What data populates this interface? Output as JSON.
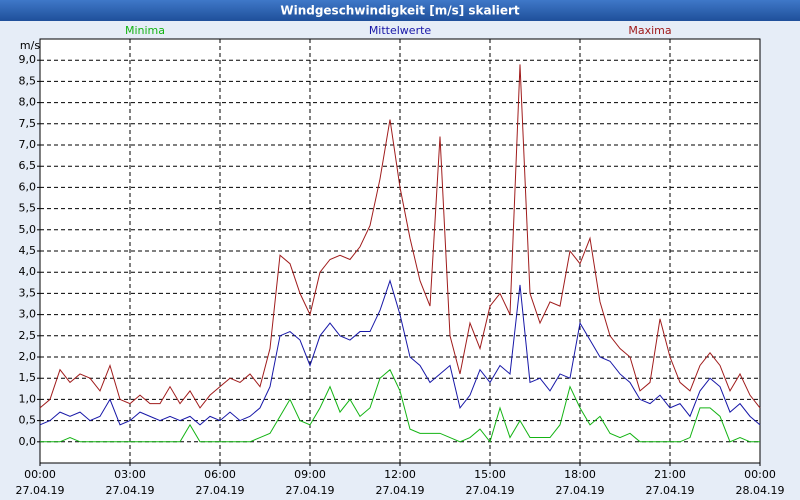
{
  "chart_data": {
    "type": "line",
    "title": "Windgeschwindigkeit [m/s] skaliert",
    "y_label": "m/s",
    "x": [
      0,
      20,
      40,
      60,
      80,
      100,
      120,
      140,
      160,
      180,
      200,
      220,
      240,
      260,
      280,
      300,
      320,
      340,
      360,
      380,
      400,
      420,
      440,
      460,
      480,
      500,
      520,
      540,
      560,
      580,
      600,
      620,
      640,
      660,
      680,
      700,
      720,
      740,
      760,
      780,
      800,
      820,
      840,
      860,
      880,
      900,
      920,
      940,
      960,
      980,
      1000,
      1020,
      1040,
      1060,
      1080,
      1100,
      1120,
      1140,
      1160,
      1180,
      1200,
      1220,
      1240,
      1260,
      1280,
      1300,
      1320,
      1340,
      1360,
      1380,
      1400,
      1420,
      1440
    ],
    "series": [
      {
        "name": "Minima",
        "color": "#14b414",
        "values": [
          0.0,
          0.0,
          0.0,
          0.1,
          0.0,
          0.0,
          0.0,
          0.0,
          0.0,
          0.0,
          0.0,
          0.0,
          0.0,
          0.0,
          0.0,
          0.4,
          0.0,
          0.0,
          0.0,
          0.0,
          0.0,
          0.0,
          0.1,
          0.2,
          0.6,
          1.0,
          0.5,
          0.4,
          0.8,
          1.3,
          0.7,
          1.0,
          0.6,
          0.8,
          1.5,
          1.7,
          1.2,
          0.3,
          0.2,
          0.2,
          0.2,
          0.1,
          0.0,
          0.1,
          0.3,
          0.0,
          0.8,
          0.1,
          0.5,
          0.1,
          0.1,
          0.1,
          0.4,
          1.3,
          0.8,
          0.4,
          0.6,
          0.2,
          0.1,
          0.2,
          0.0,
          0.0,
          0.0,
          0.0,
          0.0,
          0.1,
          0.8,
          0.8,
          0.6,
          0.0,
          0.1,
          0.0,
          0.0
        ]
      },
      {
        "name": "Mittelwerte",
        "color": "#1818a8",
        "values": [
          0.4,
          0.5,
          0.7,
          0.6,
          0.7,
          0.5,
          0.6,
          1.0,
          0.4,
          0.5,
          0.7,
          0.6,
          0.5,
          0.6,
          0.5,
          0.6,
          0.4,
          0.6,
          0.5,
          0.7,
          0.5,
          0.6,
          0.8,
          1.3,
          2.5,
          2.6,
          2.4,
          1.8,
          2.5,
          2.8,
          2.5,
          2.4,
          2.6,
          2.6,
          3.1,
          3.8,
          3.0,
          2.0,
          1.8,
          1.4,
          1.6,
          1.8,
          0.8,
          1.1,
          1.7,
          1.4,
          1.8,
          1.6,
          3.7,
          1.4,
          1.5,
          1.2,
          1.6,
          1.5,
          2.8,
          2.4,
          2.0,
          1.9,
          1.6,
          1.4,
          1.0,
          0.9,
          1.1,
          0.8,
          0.9,
          0.6,
          1.2,
          1.5,
          1.3,
          0.7,
          0.9,
          0.6,
          0.4
        ]
      },
      {
        "name": "Maxima",
        "color": "#a01c1c",
        "values": [
          0.8,
          1.0,
          1.7,
          1.4,
          1.6,
          1.5,
          1.2,
          1.8,
          1.0,
          0.9,
          1.1,
          0.9,
          0.9,
          1.3,
          0.9,
          1.2,
          0.8,
          1.1,
          1.3,
          1.5,
          1.4,
          1.6,
          1.3,
          2.2,
          4.4,
          4.2,
          3.5,
          3.0,
          4.0,
          4.3,
          4.4,
          4.3,
          4.6,
          5.1,
          6.2,
          7.6,
          6.0,
          4.8,
          3.8,
          3.2,
          7.2,
          2.5,
          1.6,
          2.8,
          2.2,
          3.2,
          3.5,
          3.0,
          8.9,
          3.5,
          2.8,
          3.3,
          3.2,
          4.5,
          4.2,
          4.8,
          3.3,
          2.5,
          2.2,
          2.0,
          1.2,
          1.4,
          2.9,
          2.0,
          1.4,
          1.2,
          1.8,
          2.1,
          1.8,
          1.2,
          1.6,
          1.1,
          0.8
        ]
      }
    ],
    "xlim": [
      0,
      1440
    ],
    "xticks": [
      {
        "value": 0,
        "label": "00:00",
        "date": "27.04.19"
      },
      {
        "value": 180,
        "label": "03:00",
        "date": "27.04.19"
      },
      {
        "value": 360,
        "label": "06:00",
        "date": "27.04.19"
      },
      {
        "value": 540,
        "label": "09:00",
        "date": "27.04.19"
      },
      {
        "value": 720,
        "label": "12:00",
        "date": "27.04.19"
      },
      {
        "value": 900,
        "label": "15:00",
        "date": "27.04.19"
      },
      {
        "value": 1080,
        "label": "18:00",
        "date": "27.04.19"
      },
      {
        "value": 1260,
        "label": "21:00",
        "date": "27.04.19"
      },
      {
        "value": 1440,
        "label": "00:00",
        "date": "28.04.19"
      }
    ],
    "ylim": [
      -0.5,
      9.5
    ],
    "yticks": [
      {
        "value": 0,
        "label": "0,0"
      },
      {
        "value": 0.5,
        "label": "0,5"
      },
      {
        "value": 1,
        "label": "1,0"
      },
      {
        "value": 1.5,
        "label": "1,5"
      },
      {
        "value": 2,
        "label": "2,0"
      },
      {
        "value": 2.5,
        "label": "2,5"
      },
      {
        "value": 3,
        "label": "3,0"
      },
      {
        "value": 3.5,
        "label": "3,5"
      },
      {
        "value": 4,
        "label": "4,0"
      },
      {
        "value": 4.5,
        "label": "4,5"
      },
      {
        "value": 5,
        "label": "5,0"
      },
      {
        "value": 5.5,
        "label": "5,5"
      },
      {
        "value": 6,
        "label": "6,0"
      },
      {
        "value": 6.5,
        "label": "6,5"
      },
      {
        "value": 7,
        "label": "7,0"
      },
      {
        "value": 7.5,
        "label": "7,5"
      },
      {
        "value": 8,
        "label": "8,0"
      },
      {
        "value": 8.5,
        "label": "8,5"
      },
      {
        "value": 9,
        "label": "9,0"
      }
    ],
    "grid": true
  }
}
